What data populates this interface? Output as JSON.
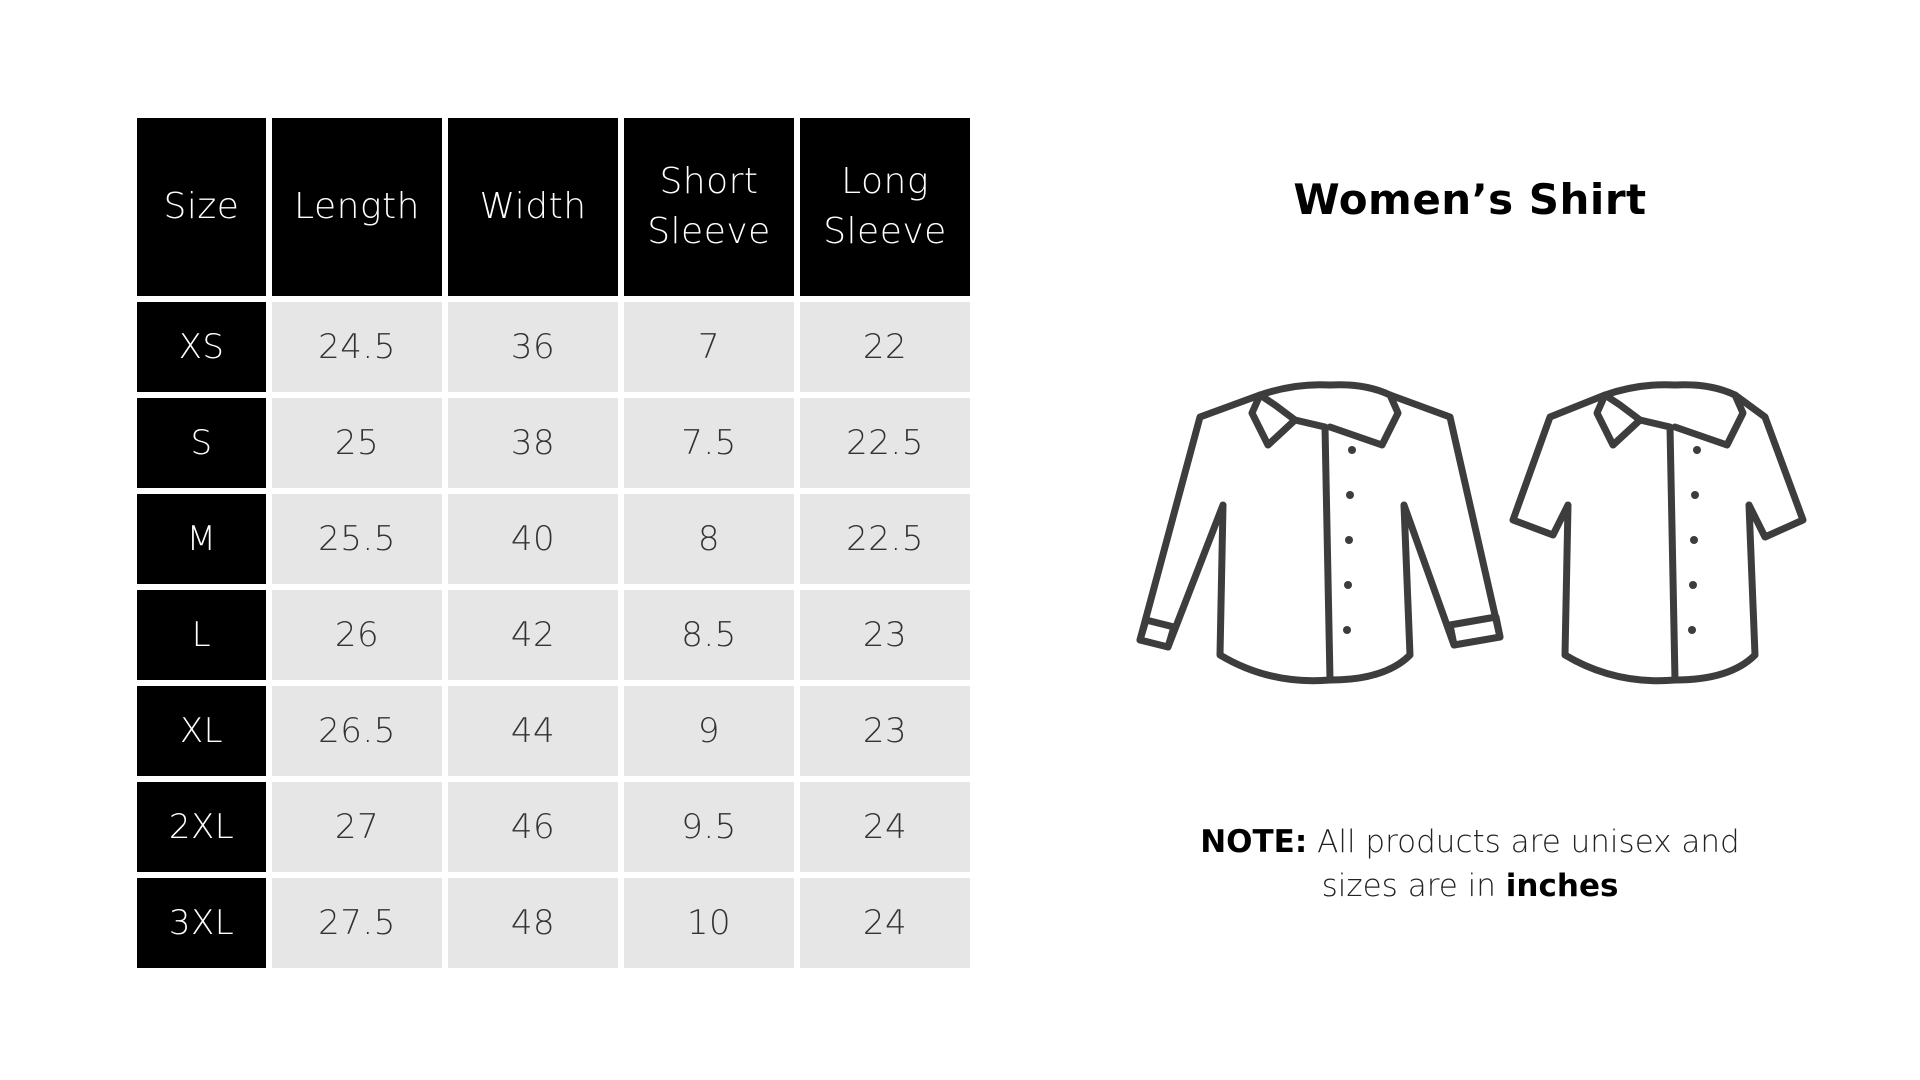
{
  "table": {
    "headers": {
      "size": "Size",
      "length": "Length",
      "width": "Width",
      "short_sleeve": [
        "Short",
        "Sleeve"
      ],
      "long_sleeve": [
        "Long",
        "Sleeve"
      ]
    },
    "rows": [
      {
        "size": "XS",
        "length": "24.5",
        "width": "36",
        "short_sleeve": "7",
        "long_sleeve": "22"
      },
      {
        "size": "S",
        "length": "25",
        "width": "38",
        "short_sleeve": "7.5",
        "long_sleeve": "22.5"
      },
      {
        "size": "M",
        "length": "25.5",
        "width": "40",
        "short_sleeve": "8",
        "long_sleeve": "22.5"
      },
      {
        "size": "L",
        "length": "26",
        "width": "42",
        "short_sleeve": "8.5",
        "long_sleeve": "23"
      },
      {
        "size": "XL",
        "length": "26.5",
        "width": "44",
        "short_sleeve": "9",
        "long_sleeve": "23"
      },
      {
        "size": "2XL",
        "length": "27",
        "width": "46",
        "short_sleeve": "9.5",
        "long_sleeve": "24"
      },
      {
        "size": "3XL",
        "length": "27.5",
        "width": "48",
        "short_sleeve": "10",
        "long_sleeve": "24"
      }
    ]
  },
  "title": "Women’s Shirt",
  "illustration": {
    "icons": [
      "long-sleeve-shirt-icon",
      "short-sleeve-shirt-icon"
    ],
    "stroke_color": "#3d3d3d"
  },
  "note": {
    "label": "NOTE:",
    "text_1": " All products are unisex and sizes are in ",
    "emphasis": "inches"
  },
  "colors": {
    "header_bg": "#000000",
    "cell_bg": "#e6e6e6",
    "text_dark": "#333333"
  }
}
